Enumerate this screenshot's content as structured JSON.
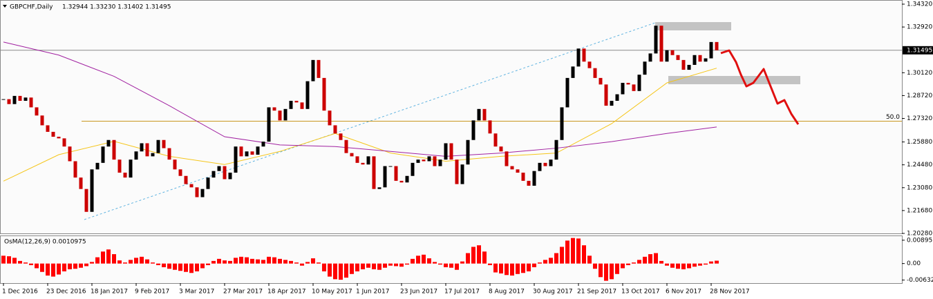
{
  "chart_data": {
    "type": "candlestick",
    "symbol": "GBPCHF,Daily",
    "ohlc_text": "1.32944 1.33230 1.31402 1.31495",
    "up_color": "#000000",
    "down_color": "#cc0000",
    "values": [
      1.285,
      1.282,
      1.287,
      1.284,
      1.286,
      1.28,
      1.275,
      1.269,
      1.265,
      1.262,
      1.261,
      1.256,
      1.247,
      1.237,
      1.23,
      1.216,
      1.242,
      1.246,
      1.256,
      1.26,
      1.248,
      1.24,
      1.237,
      1.248,
      1.253,
      1.258,
      1.25,
      1.252,
      1.26,
      1.255,
      1.248,
      1.242,
      1.238,
      1.233,
      1.231,
      1.225,
      1.23,
      1.237,
      1.241,
      1.244,
      1.236,
      1.24,
      1.256,
      1.25,
      1.253,
      1.251,
      1.256,
      1.259,
      1.28,
      1.278,
      1.272,
      1.279,
      1.284,
      1.283,
      1.279,
      1.296,
      1.309,
      1.298,
      1.278,
      1.269,
      1.264,
      1.26,
      1.252,
      1.25,
      1.246,
      1.245,
      1.25,
      1.23,
      1.231,
      1.244,
      1.244,
      1.235,
      1.234,
      1.238,
      1.246,
      1.248,
      1.247,
      1.25,
      1.244,
      1.248,
      1.258,
      1.248,
      1.233,
      1.245,
      1.26,
      1.272,
      1.279,
      1.272,
      1.264,
      1.256,
      1.253,
      1.244,
      1.242,
      1.24,
      1.235,
      1.232,
      1.241,
      1.246,
      1.244,
      1.248,
      1.26,
      1.28,
      1.298,
      1.305,
      1.316,
      1.308,
      1.304,
      1.298,
      1.294,
      1.281,
      1.284,
      1.288,
      1.295,
      1.294,
      1.29,
      1.3,
      1.308,
      1.313,
      1.33,
      1.308,
      1.315,
      1.312,
      1.309,
      1.303,
      1.306,
      1.312,
      1.308,
      1.31,
      1.32,
      1.31495
    ],
    "current_price": 1.31495,
    "ylim": [
      1.2028,
      1.3432
    ],
    "yticks": [
      {
        "value": 1.3432,
        "label": "1.34320"
      },
      {
        "value": 1.3292,
        "label": "1.32920"
      },
      {
        "value": 1.3012,
        "label": "1.30120"
      },
      {
        "value": 1.2872,
        "label": "1.28720"
      },
      {
        "value": 1.2732,
        "label": "1.27320"
      },
      {
        "value": 1.2588,
        "label": "1.25880"
      },
      {
        "value": 1.2448,
        "label": "1.24480"
      },
      {
        "value": 1.2308,
        "label": "1.23080"
      },
      {
        "value": 1.2168,
        "label": "1.21680"
      },
      {
        "value": 1.2028,
        "label": "1.20280"
      }
    ],
    "level": {
      "value": 1.2715,
      "label": "50.0",
      "color": "#c8961e"
    },
    "series": [
      {
        "color": "#f5c518",
        "x": [
          0,
          10,
          20,
          30,
          40,
          50,
          60,
          70,
          80,
          90,
          100,
          110,
          120,
          129
        ],
        "values": [
          1.2348,
          1.251,
          1.2592,
          1.25,
          1.245,
          1.253,
          1.264,
          1.252,
          1.247,
          1.25,
          1.252,
          1.27,
          1.295,
          1.304
        ]
      },
      {
        "color": "#a020a0",
        "x": [
          0,
          10,
          20,
          30,
          40,
          50,
          60,
          70,
          80,
          90,
          100,
          110,
          120,
          129
        ],
        "values": [
          1.32,
          1.312,
          1.299,
          1.281,
          1.262,
          1.257,
          1.256,
          1.253,
          1.25,
          1.252,
          1.255,
          1.259,
          1.264,
          1.268
        ]
      }
    ],
    "x_ticks": [
      {
        "value": 0,
        "label": "1 Dec 2016"
      },
      {
        "value": 8,
        "label": "23 Dec 2016"
      },
      {
        "value": 16,
        "label": "18 Jan 2017"
      },
      {
        "value": 24,
        "label": "9 Feb 2017"
      },
      {
        "value": 32,
        "label": "3 Mar 2017"
      },
      {
        "value": 40,
        "label": "27 Mar 2017"
      },
      {
        "value": 48,
        "label": "18 Apr 2017"
      },
      {
        "value": 56,
        "label": "10 May 2017"
      },
      {
        "value": 64,
        "label": "1 Jun 2017"
      },
      {
        "value": 72,
        "label": "23 Jun 2017"
      },
      {
        "value": 80,
        "label": "17 Jul 2017"
      },
      {
        "value": 88,
        "label": "8 Aug 2017"
      },
      {
        "value": 96,
        "label": "30 Aug 2017"
      },
      {
        "value": 104,
        "label": "21 Sep 2017"
      },
      {
        "value": 112,
        "label": "13 Oct 2017"
      },
      {
        "value": 120,
        "label": "6 Nov 2017"
      },
      {
        "value": 128,
        "label": "28 Nov 2017"
      }
    ],
    "osma": {
      "title": "OsMA(12,26,9) 0.0010975",
      "color": "#ff0000",
      "values": [
        0.003,
        0.0028,
        0.0022,
        0.001,
        0.0004,
        -0.0006,
        -0.0018,
        -0.0032,
        -0.0046,
        -0.005,
        -0.0042,
        -0.003,
        -0.0022,
        -0.002,
        -0.0016,
        -0.001,
        0.0006,
        0.0024,
        0.0046,
        0.0054,
        0.0036,
        0.0012,
        0.0004,
        0.0014,
        0.0022,
        0.0026,
        0.0016,
        0.0004,
        -0.0006,
        -0.0014,
        -0.002,
        -0.0024,
        -0.0028,
        -0.0032,
        -0.0036,
        -0.003,
        -0.0018,
        -0.0006,
        0.001,
        0.0018,
        0.0012,
        0.001,
        0.0022,
        0.0026,
        0.0024,
        0.0018,
        0.0016,
        0.0014,
        0.0026,
        0.0024,
        0.0018,
        0.0014,
        0.001,
        0.0004,
        -0.0008,
        0.0006,
        0.002,
        0.0004,
        -0.003,
        -0.005,
        -0.006,
        -0.0062,
        -0.0054,
        -0.004,
        -0.003,
        -0.0022,
        -0.0016,
        -0.0022,
        -0.0024,
        -0.0016,
        -0.0008,
        -0.001,
        -0.0012,
        -0.0004,
        0.0018,
        0.003,
        0.0034,
        0.002,
        0.0006,
        -0.0004,
        -0.0014,
        -0.0016,
        -0.0024,
        0.0008,
        0.004,
        0.0064,
        0.007,
        0.0046,
        -0.0006,
        -0.0034,
        -0.0038,
        -0.0044,
        -0.0046,
        -0.004,
        -0.0036,
        -0.003,
        -0.0014,
        0.0004,
        0.0014,
        0.0022,
        0.004,
        0.0064,
        0.0088,
        0.0098,
        0.0096,
        0.007,
        0.003,
        -0.002,
        -0.0052,
        -0.0066,
        -0.006,
        -0.004,
        -0.0018,
        -0.0006,
        0.0004,
        0.0014,
        0.0026,
        0.0036,
        0.004,
        0.001,
        -0.0008,
        -0.0016,
        -0.002,
        -0.0022,
        -0.0018,
        -0.0012,
        -0.0008,
        -0.0004,
        0.0008,
        0.0010975
      ],
      "ylim": [
        -0.0075,
        0.0105
      ],
      "yticks": [
        0.008951,
        {
          "value": 0,
          "label": "0.00"
        },
        {
          "value": -0.00632,
          "label": "-0.006320"
        }
      ]
    }
  }
}
